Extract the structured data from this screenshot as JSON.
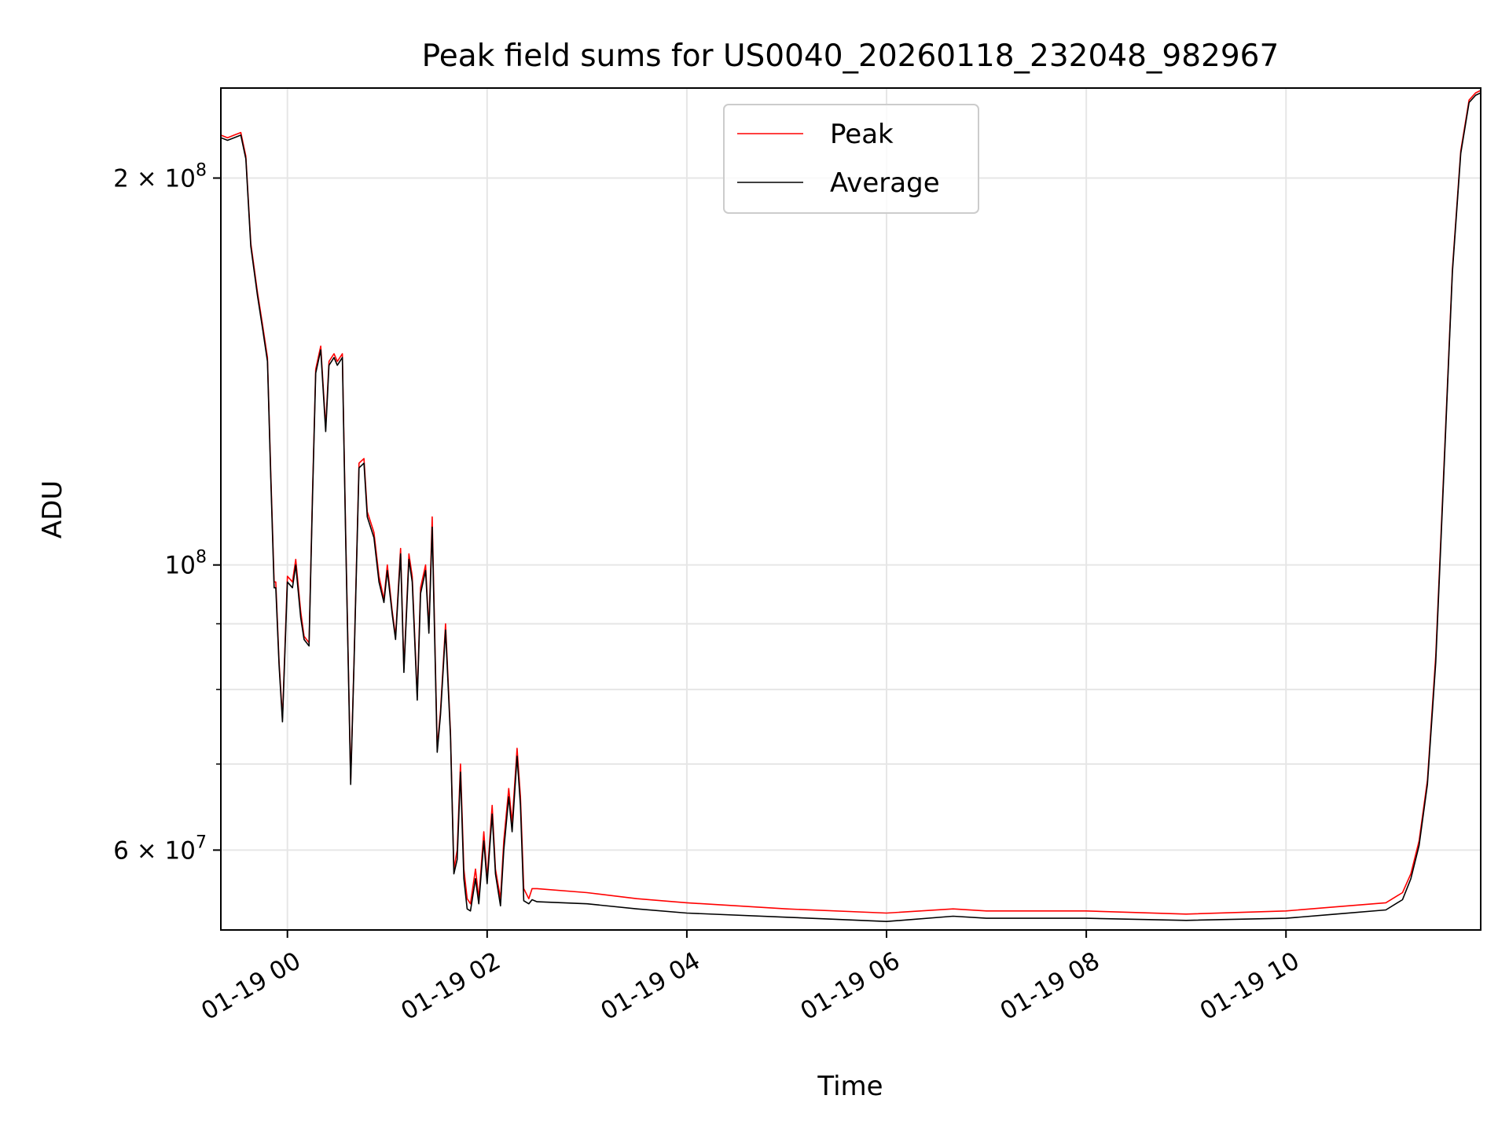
{
  "chart_data": {
    "type": "line",
    "title": "Peak field sums for US0040_20260118_232048_982967",
    "xlabel": "Time",
    "ylabel": "ADU",
    "yscale": "log",
    "xlim": [
      "2026-01-18 23:20",
      "2026-01-19 11:57"
    ],
    "ylim": [
      52000000,
      235000000
    ],
    "xticks": [
      {
        "value": "2026-01-19 00:00",
        "label": "01-19 00"
      },
      {
        "value": "2026-01-19 02:00",
        "label": "01-19 02"
      },
      {
        "value": "2026-01-19 04:00",
        "label": "01-19 04"
      },
      {
        "value": "2026-01-19 06:00",
        "label": "01-19 06"
      },
      {
        "value": "2026-01-19 08:00",
        "label": "01-19 08"
      },
      {
        "value": "2026-01-19 10:00",
        "label": "01-19 10"
      }
    ],
    "yticks_major": [
      {
        "value": 60000000,
        "base": "6 × 10",
        "exp": "7"
      },
      {
        "value": 100000000,
        "base": "10",
        "exp": "8"
      },
      {
        "value": 200000000,
        "base": "2 × 10",
        "exp": "8"
      }
    ],
    "yticks_minor": [
      70000000,
      80000000,
      90000000
    ],
    "grid": true,
    "legend_position": "top-center",
    "series": [
      {
        "name": "Peak",
        "color": "#ff0000",
        "x": [
          "2026-01-18 23:20",
          "2026-01-18 23:24",
          "2026-01-18 23:28",
          "2026-01-18 23:32",
          "2026-01-18 23:35",
          "2026-01-18 23:38",
          "2026-01-18 23:42",
          "2026-01-18 23:45",
          "2026-01-18 23:48",
          "2026-01-18 23:50",
          "2026-01-18 23:52",
          "2026-01-18 23:53",
          "2026-01-18 23:55",
          "2026-01-18 23:57",
          "2026-01-19 00:00",
          "2026-01-19 00:03",
          "2026-01-19 00:05",
          "2026-01-19 00:08",
          "2026-01-19 00:10",
          "2026-01-19 00:13",
          "2026-01-19 00:15",
          "2026-01-19 00:17",
          "2026-01-19 00:20",
          "2026-01-19 00:23",
          "2026-01-19 00:25",
          "2026-01-19 00:28",
          "2026-01-19 00:30",
          "2026-01-19 00:33",
          "2026-01-19 00:35",
          "2026-01-19 00:38",
          "2026-01-19 00:40",
          "2026-01-19 00:43",
          "2026-01-19 00:46",
          "2026-01-19 00:48",
          "2026-01-19 00:52",
          "2026-01-19 00:55",
          "2026-01-19 00:58",
          "2026-01-19 01:00",
          "2026-01-19 01:03",
          "2026-01-19 01:05",
          "2026-01-19 01:08",
          "2026-01-19 01:10",
          "2026-01-19 01:13",
          "2026-01-19 01:15",
          "2026-01-19 01:18",
          "2026-01-19 01:20",
          "2026-01-19 01:23",
          "2026-01-19 01:25",
          "2026-01-19 01:27",
          "2026-01-19 01:30",
          "2026-01-19 01:32",
          "2026-01-19 01:35",
          "2026-01-19 01:38",
          "2026-01-19 01:40",
          "2026-01-19 01:42",
          "2026-01-19 01:44",
          "2026-01-19 01:46",
          "2026-01-19 01:48",
          "2026-01-19 01:50",
          "2026-01-19 01:53",
          "2026-01-19 01:55",
          "2026-01-19 01:58",
          "2026-01-19 02:00",
          "2026-01-19 02:03",
          "2026-01-19 02:05",
          "2026-01-19 02:08",
          "2026-01-19 02:10",
          "2026-01-19 02:13",
          "2026-01-19 02:15",
          "2026-01-19 02:18",
          "2026-01-19 02:20",
          "2026-01-19 02:22",
          "2026-01-19 02:25",
          "2026-01-19 02:27",
          "2026-01-19 02:30",
          "2026-01-19 03:00",
          "2026-01-19 03:30",
          "2026-01-19 04:00",
          "2026-01-19 05:00",
          "2026-01-19 06:00",
          "2026-01-19 06:40",
          "2026-01-19 07:00",
          "2026-01-19 08:00",
          "2026-01-19 09:00",
          "2026-01-19 10:00",
          "2026-01-19 10:30",
          "2026-01-19 11:00",
          "2026-01-19 11:10",
          "2026-01-19 11:15",
          "2026-01-19 11:20",
          "2026-01-19 11:25",
          "2026-01-19 11:30",
          "2026-01-19 11:35",
          "2026-01-19 11:40",
          "2026-01-19 11:45",
          "2026-01-19 11:50",
          "2026-01-19 11:54",
          "2026-01-19 11:57"
        ],
        "y": [
          216000000,
          215000000,
          216000000,
          217000000,
          208000000,
          178000000,
          163000000,
          154000000,
          145000000,
          118000000,
          97000000,
          97000000,
          84000000,
          76000000,
          98000000,
          97000000,
          101000000,
          92000000,
          88000000,
          87000000,
          113000000,
          142000000,
          148000000,
          128000000,
          144000000,
          146000000,
          144000000,
          146000000,
          106000000,
          68000000,
          84000000,
          120000000,
          121000000,
          110000000,
          106000000,
          98000000,
          94000000,
          100000000,
          92000000,
          88000000,
          103000000,
          83000000,
          102000000,
          98000000,
          79000000,
          96000000,
          100000000,
          89000000,
          109000000,
          72000000,
          77000000,
          90000000,
          74000000,
          58000000,
          60000000,
          70000000,
          58000000,
          55000000,
          54500000,
          58000000,
          55000000,
          62000000,
          57000000,
          65000000,
          58000000,
          55000000,
          61000000,
          67000000,
          63000000,
          72000000,
          66000000,
          56000000,
          55000000,
          56000000,
          56000000,
          55600000,
          55000000,
          54600000,
          54000000,
          53600000,
          54000000,
          53800000,
          53800000,
          53500000,
          53800000,
          54200000,
          54600000,
          55600000,
          57500000,
          61000000,
          68000000,
          85000000,
          120000000,
          170000000,
          210000000,
          230000000,
          233000000,
          234000000
        ]
      },
      {
        "name": "Average",
        "color": "#000000",
        "x": [
          "2026-01-18 23:20",
          "2026-01-18 23:24",
          "2026-01-18 23:28",
          "2026-01-18 23:32",
          "2026-01-18 23:35",
          "2026-01-18 23:38",
          "2026-01-18 23:42",
          "2026-01-18 23:45",
          "2026-01-18 23:48",
          "2026-01-18 23:50",
          "2026-01-18 23:52",
          "2026-01-18 23:53",
          "2026-01-18 23:55",
          "2026-01-18 23:57",
          "2026-01-19 00:00",
          "2026-01-19 00:03",
          "2026-01-19 00:05",
          "2026-01-19 00:08",
          "2026-01-19 00:10",
          "2026-01-19 00:13",
          "2026-01-19 00:15",
          "2026-01-19 00:17",
          "2026-01-19 00:20",
          "2026-01-19 00:23",
          "2026-01-19 00:25",
          "2026-01-19 00:28",
          "2026-01-19 00:30",
          "2026-01-19 00:33",
          "2026-01-19 00:35",
          "2026-01-19 00:38",
          "2026-01-19 00:40",
          "2026-01-19 00:43",
          "2026-01-19 00:46",
          "2026-01-19 00:48",
          "2026-01-19 00:52",
          "2026-01-19 00:55",
          "2026-01-19 00:58",
          "2026-01-19 01:00",
          "2026-01-19 01:03",
          "2026-01-19 01:05",
          "2026-01-19 01:08",
          "2026-01-19 01:10",
          "2026-01-19 01:13",
          "2026-01-19 01:15",
          "2026-01-19 01:18",
          "2026-01-19 01:20",
          "2026-01-19 01:23",
          "2026-01-19 01:25",
          "2026-01-19 01:27",
          "2026-01-19 01:30",
          "2026-01-19 01:32",
          "2026-01-19 01:35",
          "2026-01-19 01:38",
          "2026-01-19 01:40",
          "2026-01-19 01:42",
          "2026-01-19 01:44",
          "2026-01-19 01:46",
          "2026-01-19 01:48",
          "2026-01-19 01:50",
          "2026-01-19 01:53",
          "2026-01-19 01:55",
          "2026-01-19 01:58",
          "2026-01-19 02:00",
          "2026-01-19 02:03",
          "2026-01-19 02:05",
          "2026-01-19 02:08",
          "2026-01-19 02:10",
          "2026-01-19 02:13",
          "2026-01-19 02:15",
          "2026-01-19 02:18",
          "2026-01-19 02:20",
          "2026-01-19 02:22",
          "2026-01-19 02:25",
          "2026-01-19 02:27",
          "2026-01-19 02:30",
          "2026-01-19 03:00",
          "2026-01-19 03:30",
          "2026-01-19 04:00",
          "2026-01-19 05:00",
          "2026-01-19 06:00",
          "2026-01-19 06:40",
          "2026-01-19 07:00",
          "2026-01-19 08:00",
          "2026-01-19 09:00",
          "2026-01-19 10:00",
          "2026-01-19 10:30",
          "2026-01-19 11:00",
          "2026-01-19 11:10",
          "2026-01-19 11:15",
          "2026-01-19 11:20",
          "2026-01-19 11:25",
          "2026-01-19 11:30",
          "2026-01-19 11:35",
          "2026-01-19 11:40",
          "2026-01-19 11:45",
          "2026-01-19 11:50",
          "2026-01-19 11:54",
          "2026-01-19 11:57"
        ],
        "y": [
          215000000,
          214000000,
          215000000,
          216000000,
          207000000,
          177000000,
          162000000,
          153000000,
          144000000,
          117000000,
          96000000,
          96000000,
          83500000,
          75500000,
          97000000,
          96000000,
          100000000,
          91000000,
          87500000,
          86500000,
          112000000,
          141000000,
          147000000,
          127000000,
          143000000,
          145000000,
          143000000,
          145000000,
          105000000,
          67500000,
          83500000,
          119000000,
          120000000,
          109000000,
          105000000,
          97000000,
          93500000,
          99000000,
          91500000,
          87500000,
          102000000,
          82500000,
          101000000,
          97000000,
          78500000,
          95000000,
          99000000,
          88500000,
          107000000,
          71500000,
          76500000,
          89000000,
          73500000,
          57500000,
          59000000,
          69000000,
          57000000,
          54000000,
          53800000,
          57000000,
          54500000,
          61000000,
          56500000,
          64000000,
          57500000,
          54300000,
          60000000,
          66000000,
          62000000,
          71000000,
          65000000,
          54800000,
          54500000,
          54900000,
          54700000,
          54500000,
          54000000,
          53600000,
          53200000,
          52800000,
          53300000,
          53100000,
          53100000,
          52900000,
          53100000,
          53500000,
          53900000,
          54900000,
          57000000,
          60500000,
          67500000,
          84000000,
          119000000,
          169000000,
          209000000,
          229000000,
          232000000,
          233000000
        ]
      }
    ]
  }
}
